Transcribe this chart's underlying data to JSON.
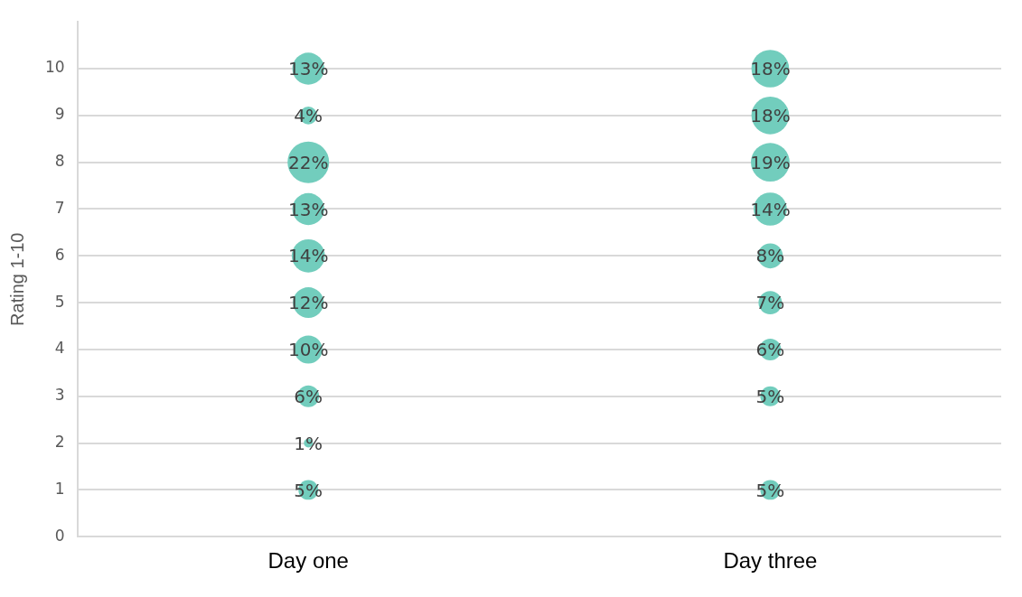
{
  "chart_data": {
    "type": "bubble",
    "ylabel": "Rating 1-10",
    "categories": [
      "Day one",
      "Day three"
    ],
    "ylim": [
      0,
      11
    ],
    "yticks": [
      0,
      1,
      2,
      3,
      4,
      5,
      6,
      7,
      8,
      9,
      10
    ],
    "grid": "y",
    "legend": false,
    "series": [
      {
        "color": "#72cdbd",
        "x": [
          "Day one",
          "Day one",
          "Day one",
          "Day one",
          "Day one",
          "Day one",
          "Day one",
          "Day one",
          "Day one",
          "Day one",
          "Day three",
          "Day three",
          "Day three",
          "Day three",
          "Day three",
          "Day three",
          "Day three",
          "Day three",
          "Day three"
        ],
        "values": [
          10,
          9,
          8,
          7,
          6,
          5,
          4,
          3,
          2,
          1,
          10,
          9,
          8,
          7,
          6,
          5,
          4,
          3,
          1
        ],
        "sizes": [
          13,
          4,
          22,
          13,
          14,
          12,
          10,
          6,
          1,
          5,
          18,
          18,
          19,
          14,
          8,
          7,
          6,
          5,
          5
        ],
        "value_labels": [
          "13%",
          "4%",
          "22%",
          "13%",
          "14%",
          "12%",
          "10%",
          "6%",
          "1%",
          "5%",
          "18%",
          "18%",
          "19%",
          "14%",
          "8%",
          "7%",
          "6%",
          "5%",
          "5%"
        ]
      }
    ]
  }
}
